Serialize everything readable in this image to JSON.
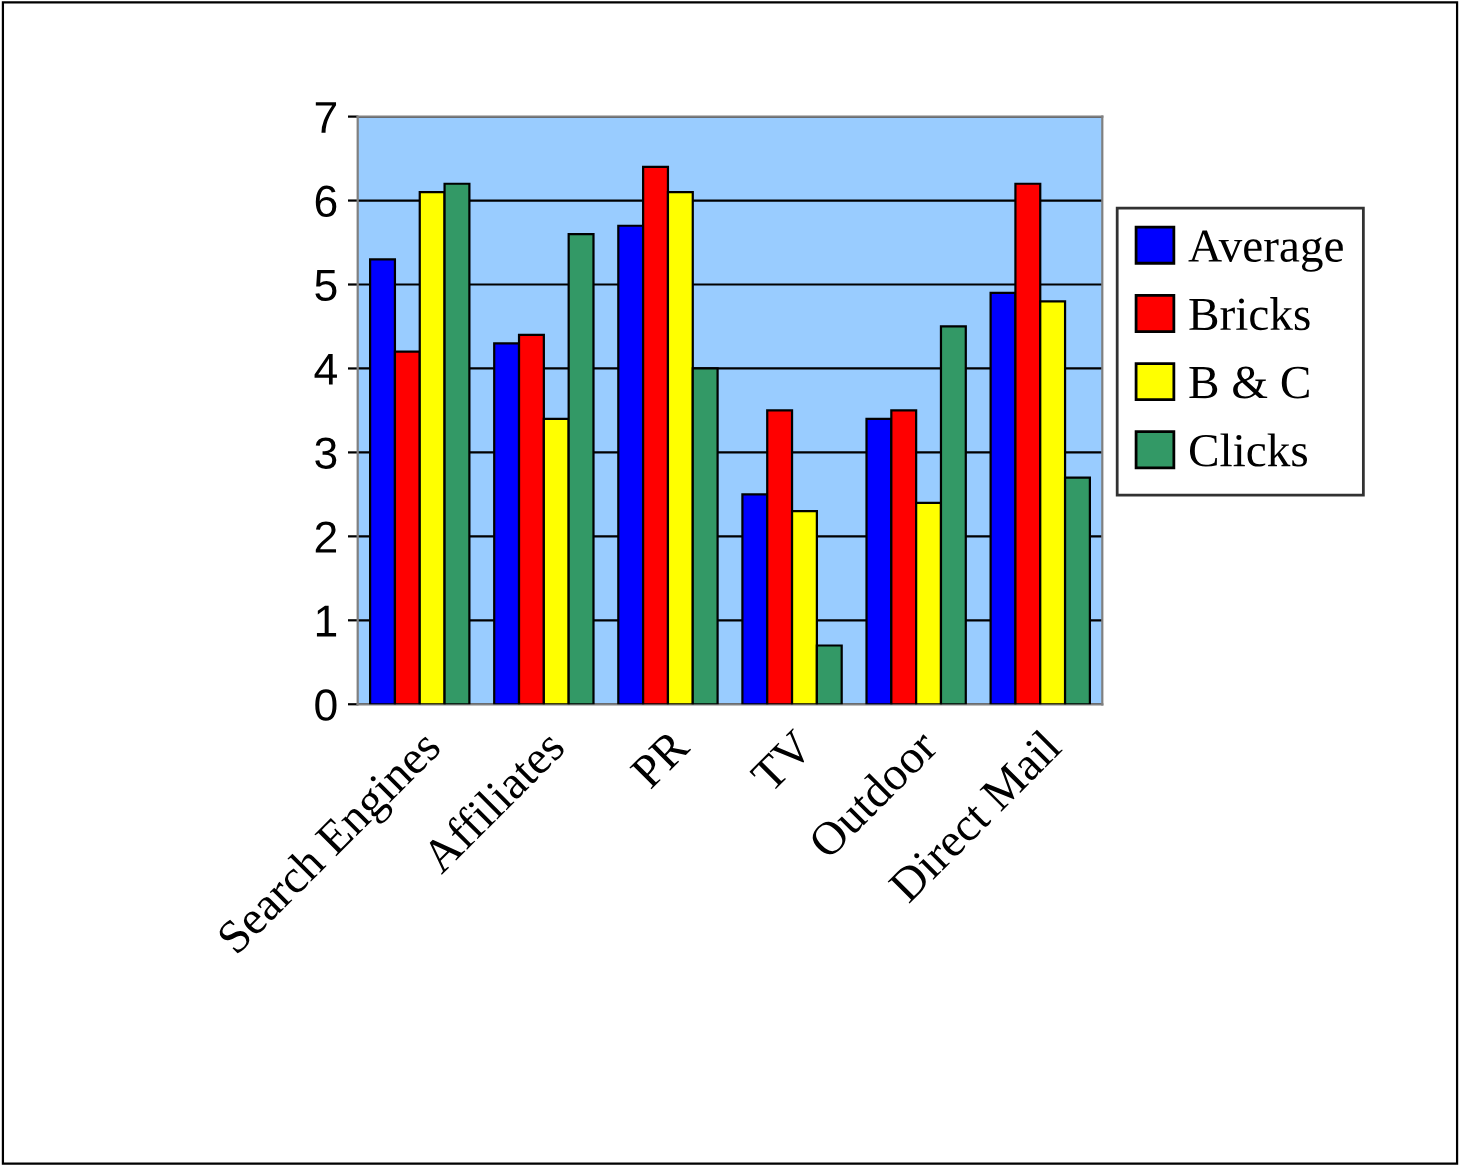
{
  "chart_data": {
    "type": "bar",
    "categories": [
      "Search Engines",
      "Affiliates",
      "PR",
      "TV",
      "Outdoor",
      "Direct Mail"
    ],
    "series": [
      {
        "name": "Average",
        "color": "#0000ff",
        "values": [
          5.3,
          4.3,
          5.7,
          2.5,
          3.4,
          4.9
        ]
      },
      {
        "name": "Bricks",
        "color": "#ff0000",
        "values": [
          4.2,
          4.4,
          6.4,
          3.5,
          3.5,
          6.2
        ]
      },
      {
        "name": "B & C",
        "color": "#ffff00",
        "values": [
          6.1,
          3.4,
          6.1,
          2.3,
          2.4,
          4.8
        ]
      },
      {
        "name": "Clicks",
        "color": "#339966",
        "values": [
          6.2,
          5.6,
          4.0,
          0.7,
          4.5,
          2.7
        ]
      }
    ],
    "ylim": [
      0,
      7
    ],
    "yticks": [
      0,
      1,
      2,
      3,
      4,
      5,
      6,
      7
    ],
    "grid": "y",
    "legend": "right"
  }
}
